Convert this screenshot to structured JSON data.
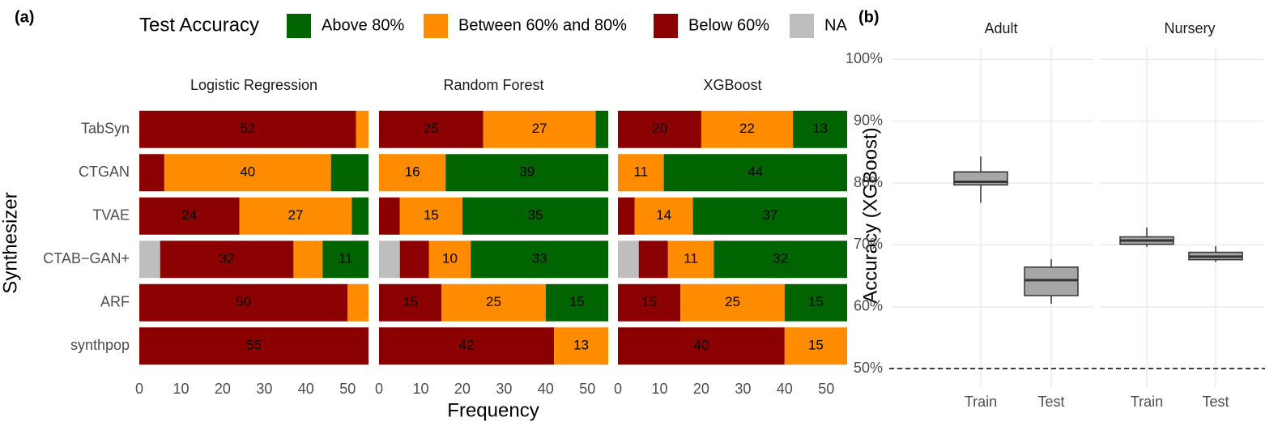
{
  "chart_data": [
    {
      "type": "stacked-bar",
      "panel_label": "(a)",
      "legend_title": "Test Accuracy",
      "legend": [
        {
          "name": "Above 80%",
          "color": "#006400"
        },
        {
          "name": "Between 60% and 80%",
          "color": "#ff8c00"
        },
        {
          "name": "Below 60%",
          "color": "#8b0000"
        },
        {
          "name": "NA",
          "color": "#bebebe"
        }
      ],
      "categories": [
        "TabSyn",
        "CTGAN",
        "TVAE",
        "CTAB−GAN+",
        "ARF",
        "synthpop"
      ],
      "x_label": "Frequency",
      "y_label": "Synthesizer",
      "xlim": [
        0,
        55
      ],
      "xticks": [
        0,
        10,
        20,
        30,
        40,
        50
      ],
      "facets": [
        {
          "title": "Logistic Regression",
          "series": [
            {
              "values": [
                0,
                9,
                4,
                11,
                0,
                0
              ]
            },
            {
              "values": [
                3,
                40,
                27,
                7,
                5,
                0
              ]
            },
            {
              "values": [
                52,
                6,
                24,
                32,
                50,
                55
              ]
            },
            {
              "values": [
                0,
                0,
                0,
                5,
                0,
                0
              ]
            }
          ]
        },
        {
          "title": "Random Forest",
          "series": [
            {
              "values": [
                3,
                39,
                35,
                33,
                15,
                0
              ]
            },
            {
              "values": [
                27,
                16,
                15,
                10,
                25,
                13
              ]
            },
            {
              "values": [
                25,
                0,
                5,
                7,
                15,
                42
              ]
            },
            {
              "values": [
                0,
                0,
                0,
                5,
                0,
                0
              ]
            }
          ]
        },
        {
          "title": "XGBoost",
          "series": [
            {
              "values": [
                13,
                44,
                37,
                32,
                15,
                0
              ]
            },
            {
              "values": [
                22,
                11,
                14,
                11,
                25,
                15
              ]
            },
            {
              "values": [
                20,
                0,
                4,
                7,
                15,
                40
              ]
            },
            {
              "values": [
                0,
                0,
                0,
                5,
                0,
                0
              ]
            }
          ]
        }
      ]
    },
    {
      "type": "box",
      "panel_label": "(b)",
      "y_label": "Accuracy (XGBoost)",
      "categories": [
        "Train",
        "Test"
      ],
      "color": "#a6a6a6",
      "ylim": [
        47,
        102
      ],
      "yticks": [
        {
          "value": 50,
          "label": "50%"
        },
        {
          "value": 60,
          "label": "60%"
        },
        {
          "value": 70,
          "label": "70%"
        },
        {
          "value": 80,
          "label": "80%"
        },
        {
          "value": 90,
          "label": "90%"
        },
        {
          "value": 100,
          "label": "100%"
        }
      ],
      "reference_line": 50,
      "grid": true,
      "facets": [
        {
          "title": "Adult",
          "boxes": [
            {
              "low": 76.8,
              "q1": 79.7,
              "median": 80.2,
              "q3": 81.8,
              "high": 84.3
            },
            {
              "low": 60.5,
              "q1": 61.8,
              "median": 64.3,
              "q3": 66.4,
              "high": 67.7
            }
          ]
        },
        {
          "title": "Nursery",
          "boxes": [
            {
              "low": 69.7,
              "q1": 70.1,
              "median": 70.7,
              "q3": 71.3,
              "high": 72.8
            },
            {
              "low": 67.2,
              "q1": 67.6,
              "median": 68.1,
              "q3": 68.8,
              "high": 69.8
            }
          ]
        }
      ]
    }
  ]
}
